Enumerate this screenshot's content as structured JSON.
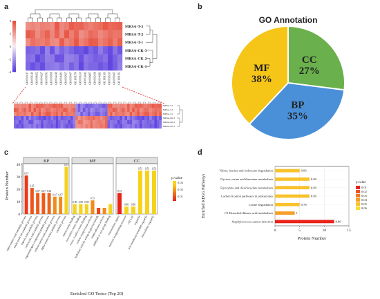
{
  "panels": {
    "a": "a",
    "b": "b",
    "c": "c",
    "d": "d"
  },
  "heatmap_a": {
    "rows": [
      "MRSA-T-3",
      "MRSA-T-2",
      "MRSA-T-1",
      "MRSA-CK-3",
      "MRSA-CK-2",
      "MRSA-CK-1"
    ],
    "columns": [
      "GO:0009117",
      "GO:0016310",
      "GO:0008152",
      "GO:0044237",
      "GO:0006793",
      "GO:0009058",
      "GO:0044249",
      "GO:0046483",
      "GO:0019637",
      "GO:0090407",
      "GO:1901576",
      "GO:0006139",
      "GO:0034641",
      "GO:0006807",
      "GO:0019438",
      "GO:0044281",
      "GO:1901360",
      "GO:0018130",
      "GO:0009165",
      "GO:1901293"
    ],
    "legend_ticks": [
      "4",
      "2",
      "0",
      "-2",
      "-4"
    ],
    "colors": {
      "high": "#e8503e",
      "mid": "#f5eef2",
      "low": "#5a3ee0"
    }
  },
  "heatmap_zoom": {
    "rows": [
      "MRSA-T-3",
      "MRSA-T-2",
      "MRSA-T-1",
      "MRSA-CK-3",
      "MRSA-CK-2",
      "MRSA-CK-1"
    ]
  },
  "chart_data": [
    {
      "type": "pie",
      "title": "GO Annotation",
      "slices": [
        {
          "label": "CC",
          "value": 27,
          "text": "27%",
          "color": "#6ab04c"
        },
        {
          "label": "BP",
          "value": 35,
          "text": "35%",
          "color": "#4a90d9"
        },
        {
          "label": "MF",
          "value": 38,
          "text": "38%",
          "color": "#f5c518"
        }
      ]
    },
    {
      "type": "bar",
      "xlabel": "Enriched GO Terms (Top 20)",
      "ylabel": "Protein Number",
      "ylim": [
        0,
        40
      ],
      "yticks": [
        "0",
        "10",
        "20",
        "30",
        "40"
      ],
      "legend_title": "p.value",
      "legend_ticks": [
        "0.03",
        "0.02",
        "0.01"
      ],
      "facets": [
        {
          "name": "BP",
          "categories": [
            "alpha-amino acid metabolic process",
            "small molecule catabolic process",
            "organic acid catabolic process",
            "carboxylic acid catabolic process",
            "organonitrogen compound catabolic process",
            "cellular amino acid catabolic process",
            "alpha-amino acid catabolic process",
            "catabolic process"
          ],
          "values": [
            31,
            21,
            17,
            17,
            17,
            14,
            14,
            38
          ],
          "labels": [
            "0.37",
            "0.65",
            "0.67",
            "0.67",
            "0.62",
            "0.67",
            "0.67",
            "0.53"
          ],
          "pvalues": [
            0.008,
            0.012,
            0.013,
            0.013,
            0.014,
            0.02,
            0.02,
            0.03
          ]
        },
        {
          "name": "MF",
          "categories": [
            "metal cluster binding",
            "iron-sulfur cluster binding",
            "4 iron, 4 sulfur cluster binding",
            "carbon-oxygen lyase activity",
            "hydrolase activity acting on glycosyl bonds",
            "oxidoreductase activity",
            "aldehyde or oxo group binding"
          ],
          "values": [
            8,
            8,
            8,
            11,
            5,
            5,
            8
          ],
          "labels": [
            "0.89",
            "0.89",
            "0.89",
            "0.75",
            "",
            "",
            ""
          ],
          "pvalues": [
            0.03,
            0.03,
            0.03,
            0.02,
            0.01,
            0.02,
            0.03
          ]
        },
        {
          "name": "CC",
          "categories": [
            "extracellular region",
            "external encapsulating structure",
            "cell wall",
            "organelle",
            "non-membrane-bounded organelle",
            "intracellular organelle"
          ],
          "values": [
            17,
            6,
            6,
            35,
            35,
            35
          ],
          "labels": [
            "0.75",
            "0.86",
            "0.86",
            "0.53",
            "0.53",
            "0.53"
          ],
          "pvalues": [
            0.005,
            0.03,
            0.03,
            0.03,
            0.03,
            0.03
          ]
        }
      ]
    },
    {
      "type": "bar",
      "orientation": "horizontal",
      "xlabel": "Protein Number",
      "ylabel": "Enriched KEGG Pathways",
      "xlim": [
        0,
        15
      ],
      "xticks": [
        "0",
        "5",
        "10",
        "15"
      ],
      "legend_title": "p.value",
      "legend_ticks": [
        "0.01",
        "0.02",
        "0.03",
        "0.04",
        "0.05",
        "0.06"
      ],
      "legend_colors": [
        "#e8231a",
        "#ee5520",
        "#f27a24",
        "#f5a028",
        "#f7c22c",
        "#f8dc30"
      ],
      "categories": [
        "Valine, leucine and isoleucine degradation",
        "Glycine, serine and threonine metabolism",
        "Glyoxylate and dicarboxylate metabolism",
        "Carbon fixation pathways in prokaryotes",
        "Lysine degradation",
        "C5-Branched dibasic acid metabolism",
        "Staphylococcus aureus infection"
      ],
      "values": [
        5,
        7,
        7,
        7,
        5,
        4,
        12
      ],
      "labels": [
        "0.83",
        "0.69",
        "0.69",
        "0.69",
        "0.78",
        "1",
        "0.86"
      ],
      "pvalues": [
        0.05,
        0.05,
        0.05,
        0.05,
        0.05,
        0.04,
        0.01
      ]
    }
  ]
}
